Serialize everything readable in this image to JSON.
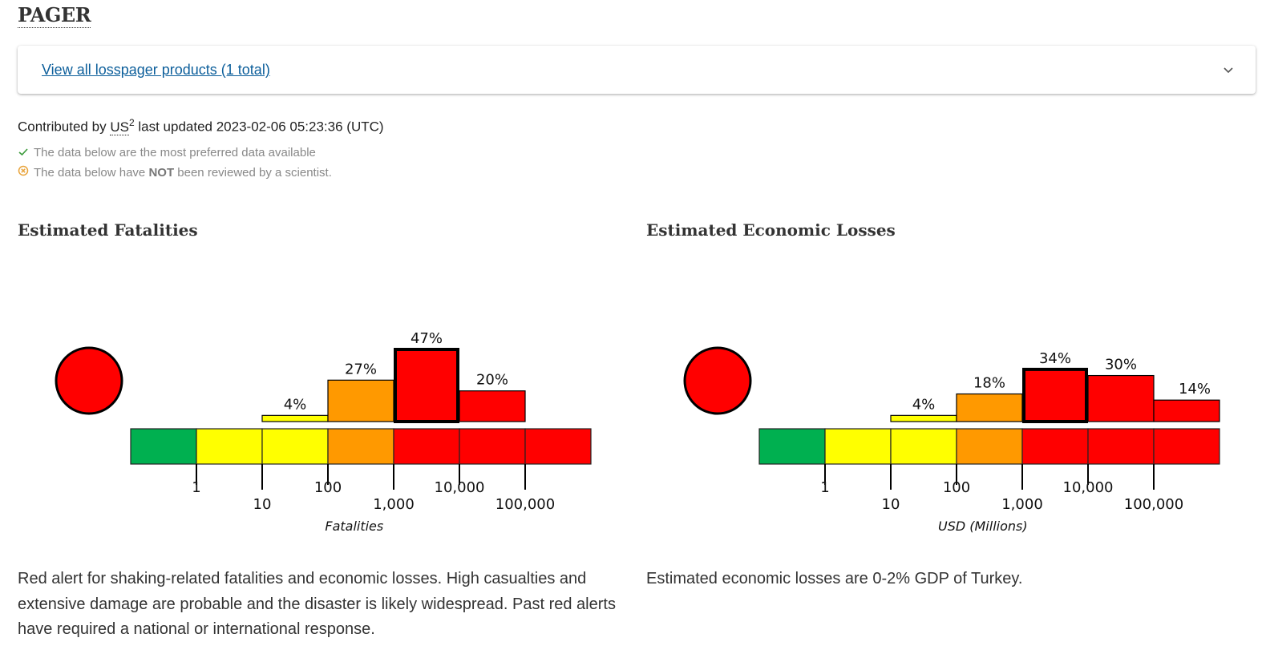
{
  "page": {
    "title": "PAGER",
    "accordion_link": "View all losspager products (1 total)",
    "contributed_prefix": "Contributed by",
    "contributor": "US",
    "contributor_sup": "2",
    "last_updated": "last updated 2023-02-06 05:23:36 (UTC)",
    "note_preferred": "The data below are the most preferred data available",
    "note_review_prefix": "The data below have",
    "note_review_bold": "NOT",
    "note_review_suffix": "been reviewed by a scientist.",
    "fatalities_heading": "Estimated Fatalities",
    "losses_heading": "Estimated Economic Losses",
    "fatalities_text": "Red alert for shaking-related fatalities and economic losses. High casualties and extensive damage are probable and the disaster is likely widespread. Past red alerts have required a national or international response.",
    "losses_text": "Estimated economic losses are 0-2% GDP of Turkey."
  },
  "colors": {
    "green": "#00b050",
    "yellow": "#ffff00",
    "orange": "#ff9900",
    "red": "#ff0000",
    "link": "#0d5f9b",
    "check": "#3a9a3a",
    "warn": "#e8a33a"
  },
  "chart_data": [
    {
      "type": "bar",
      "title": "Estimated Fatalities",
      "xlabel": "Fatalities",
      "alert_level": "red",
      "ticks": [
        "1",
        "10",
        "100",
        "1,000",
        "10,000",
        "100,000"
      ],
      "scale_colors": [
        "green",
        "yellow",
        "yellow",
        "orange",
        "red",
        "red",
        "red"
      ],
      "categories": [
        "0-1",
        "1-10",
        "10-100",
        "100-1,000",
        "1,000-10,000",
        "10,000-100,000",
        "100,000+"
      ],
      "values": [
        0,
        0,
        4,
        27,
        47,
        20,
        0
      ],
      "labels": [
        "",
        "",
        "4%",
        "27%",
        "47%",
        "20%",
        ""
      ],
      "highlight_index": 4
    },
    {
      "type": "bar",
      "title": "Estimated Economic Losses",
      "xlabel": "USD (Millions)",
      "alert_level": "red",
      "ticks": [
        "1",
        "10",
        "100",
        "1,000",
        "10,000",
        "100,000"
      ],
      "scale_colors": [
        "green",
        "yellow",
        "yellow",
        "orange",
        "red",
        "red",
        "red"
      ],
      "categories": [
        "0-1",
        "1-10",
        "10-100",
        "100-1,000",
        "1,000-10,000",
        "10,000-100,000",
        "100,000+"
      ],
      "values": [
        0,
        0,
        4,
        18,
        34,
        30,
        14
      ],
      "labels": [
        "",
        "",
        "4%",
        "18%",
        "34%",
        "30%",
        "14%"
      ],
      "highlight_index": 4
    }
  ]
}
